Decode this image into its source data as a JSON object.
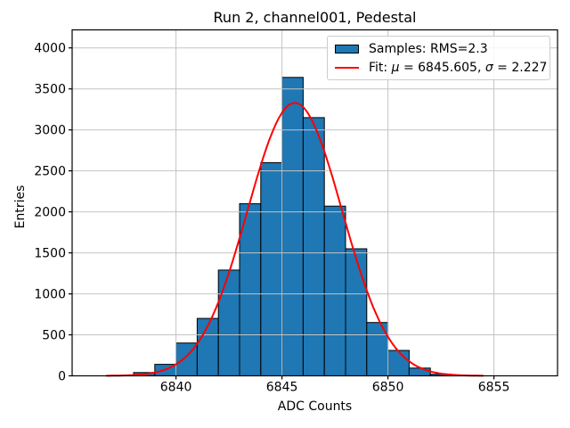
{
  "chart_data": {
    "type": "bar",
    "subtype": "histogram-with-gaussian-fit",
    "title": "Run 2, channel001, Pedestal",
    "xlabel": "ADC Counts",
    "ylabel": "Entries",
    "x_ticks": [
      6840,
      6845,
      6850,
      6855
    ],
    "y_ticks": [
      0,
      500,
      1000,
      1500,
      2000,
      2500,
      3000,
      3500,
      4000
    ],
    "xlim": [
      6835.1,
      6858.0
    ],
    "ylim": [
      0,
      4220
    ],
    "grid": true,
    "bins": {
      "start": 6838,
      "width": 1,
      "edges": [
        6838,
        6839,
        6840,
        6841,
        6842,
        6843,
        6844,
        6845,
        6846,
        6847,
        6848,
        6849,
        6850,
        6851,
        6852,
        6853
      ],
      "counts": [
        40,
        140,
        400,
        700,
        1290,
        2100,
        2600,
        3640,
        3150,
        2070,
        1550,
        650,
        310,
        95,
        20
      ]
    },
    "fit": {
      "mu": 6845.605,
      "sigma": 2.227,
      "amplitude": 3330,
      "x_min": 6836.7,
      "x_max": 6854.5
    },
    "legend": {
      "position": "upper right",
      "samples_label": "Samples: RMS=2.3",
      "fit_label": "Fit: μ = 6845.605, σ = 2.227",
      "fit_label_parts": [
        {
          "text": "Fit: ",
          "italic": false
        },
        {
          "text": "μ",
          "italic": true
        },
        {
          "text": " = 6845.605, ",
          "italic": false
        },
        {
          "text": "σ",
          "italic": true
        },
        {
          "text": " = 2.227",
          "italic": false
        }
      ]
    },
    "colors": {
      "bar_fill": "#1f77b4",
      "bar_edge": "#000000",
      "fit_line": "#ff0000",
      "grid": "#c4c4c4",
      "axes": "#000000",
      "background": "#ffffff"
    }
  }
}
